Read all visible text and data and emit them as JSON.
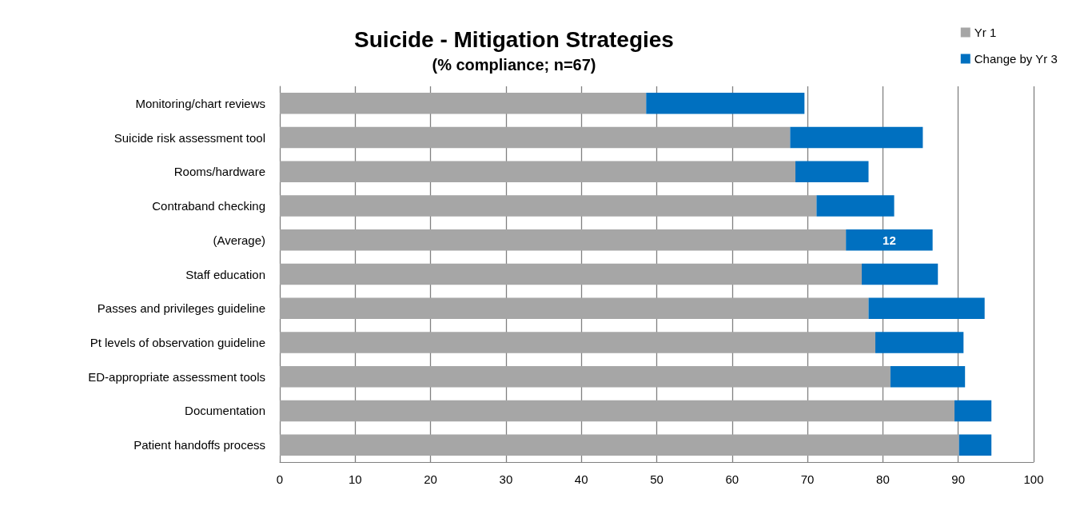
{
  "chart_data": {
    "type": "bar",
    "orientation": "horizontal",
    "stacked": true,
    "title": "Suicide - Mitigation Strategies",
    "subtitle": "(% compliance; n=67)",
    "categories": [
      "Monitoring/chart reviews",
      "Suicide risk assessment tool",
      "Rooms/hardware",
      "Contraband checking",
      "(Average)",
      "Staff education",
      "Passes and privileges guideline",
      "Pt levels of observation guideline",
      "ED-appropriate assessment tools",
      "Documentation",
      "Patient handoffs process"
    ],
    "series": [
      {
        "name": "Yr 1",
        "color": "#a6a6a6",
        "values": [
          48.6,
          67.7,
          68.4,
          71.2,
          75.1,
          77.2,
          78.1,
          79.0,
          81.0,
          89.5,
          90.1
        ]
      },
      {
        "name": "Change by Yr 3",
        "color": "#0070c0",
        "values": [
          21.0,
          17.6,
          9.7,
          10.3,
          11.5,
          10.1,
          15.4,
          11.7,
          9.9,
          4.9,
          4.3
        ],
        "value_labels": [
          null,
          null,
          null,
          null,
          "12",
          null,
          null,
          null,
          null,
          null,
          null
        ]
      }
    ],
    "xlim": [
      0,
      100
    ],
    "xticks": [
      0,
      10,
      20,
      30,
      40,
      50,
      60,
      70,
      80,
      90,
      100
    ],
    "grid": "x",
    "legend": "top right"
  }
}
